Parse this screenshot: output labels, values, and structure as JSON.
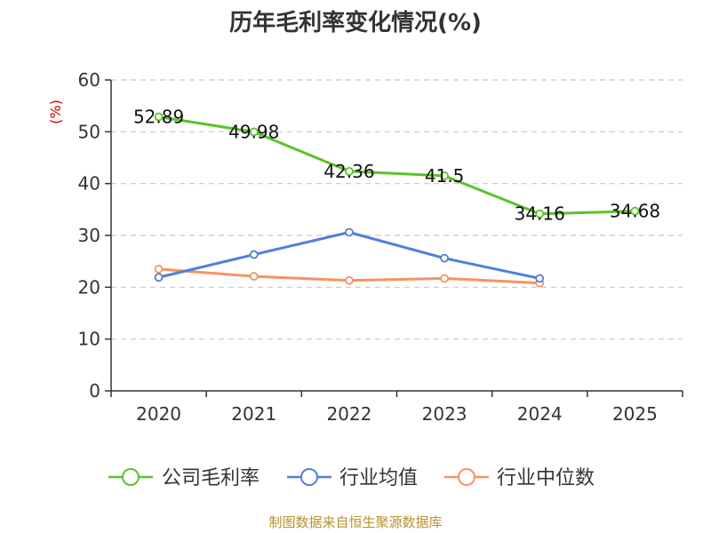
{
  "chart_data": {
    "type": "line",
    "title": "历年毛利率变化情况(%)",
    "ylabel": "(%)",
    "xlabel": "",
    "categories": [
      "2020",
      "2021",
      "2022",
      "2023",
      "2024",
      "2025"
    ],
    "ylim": [
      0,
      60
    ],
    "yticks": [
      "0",
      "10",
      "20",
      "30",
      "40",
      "50",
      "60"
    ],
    "grid": true,
    "legend_position": "bottom",
    "series": [
      {
        "name": "公司毛利率",
        "color": "#5cc22a",
        "values": [
          52.89,
          49.98,
          42.36,
          41.5,
          34.16,
          34.68
        ],
        "labels": [
          "52.89",
          "49.98",
          "42.36",
          "41.5",
          "34.16",
          "34.68"
        ]
      },
      {
        "name": "行业均值",
        "color": "#4f7fdc",
        "values": [
          21.9,
          26.3,
          30.6,
          25.6,
          21.7,
          null
        ]
      },
      {
        "name": "行业中位数",
        "color": "#f79263",
        "values": [
          23.5,
          22.1,
          21.3,
          21.7,
          20.8,
          null
        ]
      }
    ],
    "source": "制图数据来自恒生聚源数据库"
  }
}
